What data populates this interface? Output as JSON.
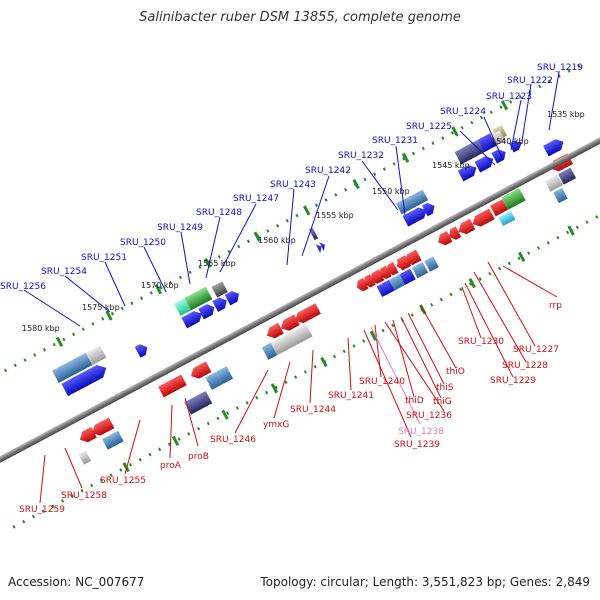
{
  "title": "Salinibacter ruber DSM 13855, complete genome",
  "footer": {
    "accession": "Accession: NC_007677",
    "summary": "Topology: circular; Length: 3,551,823 bp; Genes: 2,849"
  },
  "colors": {
    "forward_label": "#1010c8",
    "reverse_label": "#cc1010",
    "pseudo_label": "#e080c0",
    "backbone": "#888888",
    "ticks": "#2a8a2a",
    "gene_blue": "#1212e0",
    "gene_red": "#e01010",
    "gene_steel": "#4a88b8",
    "gene_grey": "#c0c0c0",
    "gene_green": "#2ea02e",
    "gene_navy": "#3a3a80"
  },
  "kbp_marks": [
    "1535 kbp",
    "1540 kbp",
    "1545 kbp",
    "1550 kbp",
    "1555 kbp",
    "1560 kbp",
    "1565 kbp",
    "1570 kbp",
    "1575 kbp",
    "1580 kbp"
  ],
  "forward_genes": [
    "SRU_1219",
    "SRU_1222",
    "SRU_1223",
    "SRU_1224",
    "SRU_1225",
    "SRU_1231",
    "SRU_1232",
    "SRU_1242",
    "SRU_1243",
    "SRU_1247",
    "SRU_1248",
    "SRU_1249",
    "SRU_1250",
    "SRU_1251",
    "SRU_1254",
    "SRU_1256"
  ],
  "reverse_genes": [
    "rrp",
    "SRU_1227",
    "SRU_1228",
    "SRU_1229",
    "SRU_1230",
    "thiO",
    "thiS",
    "thiG",
    "thiD",
    "SRU_1236",
    "SRU_1240",
    "SRU_1238",
    "SRU_1239",
    "SRU_1241",
    "SRU_1244",
    "ymxG",
    "SRU_1246",
    "proB",
    "proA",
    "SRU_1255",
    "SRU_1258",
    "SRU_1259"
  ]
}
